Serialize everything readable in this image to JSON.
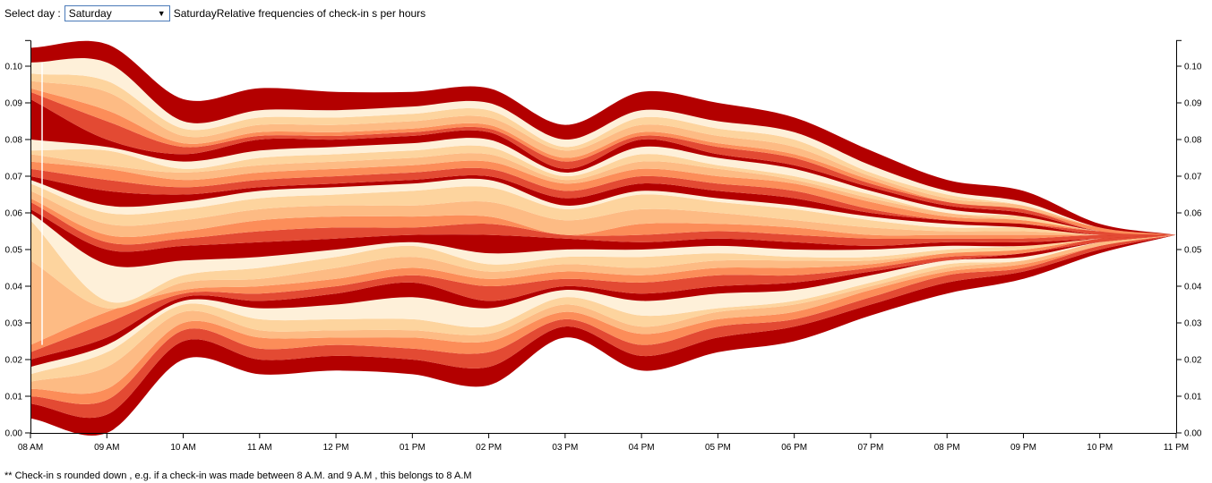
{
  "controls": {
    "select_label": "Select day :",
    "selected_day": "Saturday",
    "title": "SaturdayRelative frequencies of check-in s per hours"
  },
  "footnote": "** Check-in s rounded down , e.g. if a check-in was made between 8 A.M. and 9 A.M , this belongs to 8 A.M",
  "chart_data": {
    "type": "area",
    "subtype": "streamgraph",
    "x": [
      "08 AM",
      "09 AM",
      "10 AM",
      "11 AM",
      "12 PM",
      "01 PM",
      "02 PM",
      "03 PM",
      "04 PM",
      "05 PM",
      "06 PM",
      "07 PM",
      "08 PM",
      "09 PM",
      "10 PM",
      "11 PM"
    ],
    "ylim": [
      0,
      0.105
    ],
    "yticks": [
      "0.00",
      "0.01",
      "0.02",
      "0.03",
      "0.04",
      "0.05",
      "0.06",
      "0.07",
      "0.08",
      "0.09",
      "0.10"
    ],
    "layer_boundaries": [
      [
        0.004,
        0.0,
        0.02,
        0.016,
        0.017,
        0.016,
        0.013,
        0.026,
        0.017,
        0.022,
        0.025,
        0.032,
        0.038,
        0.042,
        0.049,
        0.054
      ],
      [
        0.008,
        0.005,
        0.025,
        0.02,
        0.021,
        0.02,
        0.018,
        0.029,
        0.021,
        0.026,
        0.029,
        0.035,
        0.041,
        0.044,
        0.05,
        0.054
      ],
      [
        0.01,
        0.009,
        0.028,
        0.023,
        0.024,
        0.023,
        0.022,
        0.031,
        0.024,
        0.029,
        0.031,
        0.037,
        0.043,
        0.045,
        0.051,
        0.054
      ],
      [
        0.012,
        0.012,
        0.03,
        0.026,
        0.026,
        0.026,
        0.025,
        0.033,
        0.027,
        0.031,
        0.033,
        0.039,
        0.044,
        0.046,
        0.051,
        0.054
      ],
      [
        0.014,
        0.018,
        0.033,
        0.028,
        0.028,
        0.028,
        0.027,
        0.035,
        0.029,
        0.033,
        0.035,
        0.04,
        0.045,
        0.047,
        0.052,
        0.054
      ],
      [
        0.016,
        0.022,
        0.035,
        0.031,
        0.031,
        0.031,
        0.029,
        0.037,
        0.032,
        0.034,
        0.036,
        0.041,
        0.046,
        0.047,
        0.052,
        0.054
      ],
      [
        0.018,
        0.024,
        0.036,
        0.034,
        0.035,
        0.037,
        0.034,
        0.039,
        0.036,
        0.038,
        0.039,
        0.043,
        0.047,
        0.048,
        0.052,
        0.054
      ],
      [
        0.02,
        0.026,
        0.037,
        0.036,
        0.038,
        0.041,
        0.036,
        0.04,
        0.038,
        0.04,
        0.041,
        0.044,
        0.047,
        0.049,
        0.052,
        0.054
      ],
      [
        0.022,
        0.03,
        0.038,
        0.038,
        0.04,
        0.043,
        0.04,
        0.042,
        0.041,
        0.043,
        0.043,
        0.045,
        0.048,
        0.049,
        0.053,
        0.054
      ],
      [
        0.024,
        0.033,
        0.039,
        0.04,
        0.042,
        0.045,
        0.042,
        0.044,
        0.043,
        0.045,
        0.045,
        0.046,
        0.049,
        0.05,
        0.053,
        0.054
      ],
      [
        0.047,
        0.034,
        0.041,
        0.042,
        0.045,
        0.048,
        0.044,
        0.046,
        0.045,
        0.047,
        0.047,
        0.047,
        0.049,
        0.05,
        0.053,
        0.054
      ],
      [
        0.058,
        0.036,
        0.043,
        0.045,
        0.048,
        0.051,
        0.046,
        0.048,
        0.048,
        0.049,
        0.048,
        0.048,
        0.05,
        0.051,
        0.053,
        0.054
      ],
      [
        0.06,
        0.046,
        0.047,
        0.048,
        0.05,
        0.052,
        0.049,
        0.05,
        0.05,
        0.051,
        0.05,
        0.05,
        0.051,
        0.051,
        0.053,
        0.054
      ],
      [
        0.061,
        0.05,
        0.051,
        0.052,
        0.053,
        0.054,
        0.054,
        0.053,
        0.052,
        0.053,
        0.052,
        0.051,
        0.052,
        0.052,
        0.053,
        0.054
      ],
      [
        0.063,
        0.052,
        0.053,
        0.055,
        0.056,
        0.056,
        0.057,
        0.054,
        0.054,
        0.055,
        0.054,
        0.053,
        0.053,
        0.053,
        0.054,
        0.054
      ],
      [
        0.064,
        0.054,
        0.055,
        0.058,
        0.059,
        0.059,
        0.059,
        0.054,
        0.057,
        0.057,
        0.056,
        0.054,
        0.054,
        0.054,
        0.054,
        0.054
      ],
      [
        0.066,
        0.057,
        0.058,
        0.061,
        0.062,
        0.062,
        0.063,
        0.058,
        0.061,
        0.06,
        0.058,
        0.056,
        0.055,
        0.055,
        0.054,
        0.054
      ],
      [
        0.068,
        0.06,
        0.061,
        0.064,
        0.065,
        0.066,
        0.067,
        0.061,
        0.065,
        0.063,
        0.061,
        0.058,
        0.056,
        0.056,
        0.054,
        0.054
      ],
      [
        0.069,
        0.062,
        0.063,
        0.066,
        0.067,
        0.068,
        0.069,
        0.062,
        0.066,
        0.064,
        0.062,
        0.059,
        0.057,
        0.056,
        0.054,
        0.054
      ],
      [
        0.07,
        0.066,
        0.065,
        0.067,
        0.068,
        0.069,
        0.07,
        0.064,
        0.068,
        0.066,
        0.064,
        0.06,
        0.058,
        0.057,
        0.054,
        0.054
      ],
      [
        0.072,
        0.069,
        0.067,
        0.069,
        0.07,
        0.071,
        0.072,
        0.066,
        0.07,
        0.068,
        0.066,
        0.061,
        0.058,
        0.057,
        0.055,
        0.054
      ],
      [
        0.074,
        0.072,
        0.069,
        0.071,
        0.072,
        0.073,
        0.074,
        0.068,
        0.072,
        0.07,
        0.068,
        0.063,
        0.059,
        0.058,
        0.055,
        0.054
      ],
      [
        0.076,
        0.073,
        0.071,
        0.073,
        0.074,
        0.075,
        0.076,
        0.069,
        0.074,
        0.072,
        0.069,
        0.064,
        0.06,
        0.058,
        0.055,
        0.054
      ],
      [
        0.077,
        0.077,
        0.072,
        0.075,
        0.076,
        0.077,
        0.078,
        0.07,
        0.076,
        0.073,
        0.07,
        0.065,
        0.06,
        0.059,
        0.055,
        0.054
      ],
      [
        0.08,
        0.078,
        0.074,
        0.077,
        0.078,
        0.079,
        0.08,
        0.071,
        0.078,
        0.075,
        0.072,
        0.066,
        0.061,
        0.059,
        0.055,
        0.054
      ],
      [
        0.091,
        0.08,
        0.076,
        0.08,
        0.08,
        0.081,
        0.082,
        0.072,
        0.08,
        0.076,
        0.073,
        0.067,
        0.062,
        0.06,
        0.055,
        0.054
      ],
      [
        0.093,
        0.085,
        0.078,
        0.081,
        0.081,
        0.082,
        0.083,
        0.074,
        0.081,
        0.078,
        0.075,
        0.068,
        0.063,
        0.061,
        0.055,
        0.054
      ],
      [
        0.094,
        0.088,
        0.079,
        0.082,
        0.082,
        0.083,
        0.084,
        0.075,
        0.082,
        0.079,
        0.076,
        0.069,
        0.063,
        0.061,
        0.056,
        0.054
      ],
      [
        0.096,
        0.093,
        0.081,
        0.084,
        0.084,
        0.085,
        0.086,
        0.077,
        0.084,
        0.081,
        0.078,
        0.07,
        0.064,
        0.062,
        0.056,
        0.054
      ],
      [
        0.098,
        0.096,
        0.083,
        0.086,
        0.086,
        0.087,
        0.088,
        0.078,
        0.086,
        0.083,
        0.08,
        0.071,
        0.065,
        0.062,
        0.056,
        0.054
      ],
      [
        0.101,
        0.101,
        0.085,
        0.088,
        0.088,
        0.089,
        0.09,
        0.08,
        0.088,
        0.085,
        0.082,
        0.073,
        0.066,
        0.063,
        0.056,
        0.054
      ],
      [
        0.105,
        0.106,
        0.091,
        0.094,
        0.093,
        0.093,
        0.094,
        0.084,
        0.093,
        0.09,
        0.086,
        0.077,
        0.069,
        0.066,
        0.057,
        0.054
      ]
    ],
    "palette": [
      "#b30000",
      "#e34a33",
      "#fc8d59",
      "#fdbb84",
      "#fdd49e",
      "#fef0d9"
    ],
    "grid": false,
    "legend": "none",
    "hover_marker_index": 0
  }
}
